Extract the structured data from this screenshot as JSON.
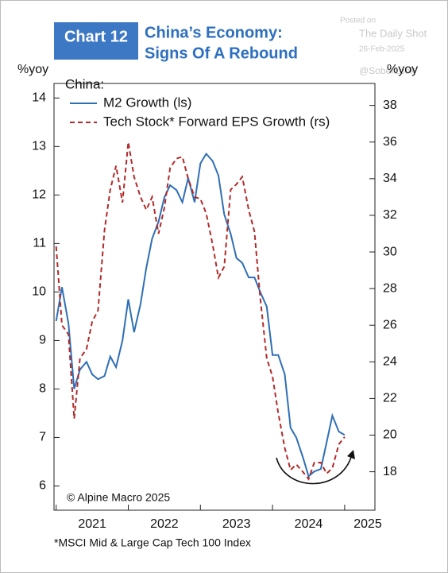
{
  "chart_data": {
    "type": "line",
    "chart_label": "Chart 12",
    "title": "China’s Economy:",
    "subtitle": "Signs Of A Rebound",
    "watermark": [
      "Posted on",
      "The Daily Shot",
      "26-Feb-2025",
      "@SoberLook"
    ],
    "ylabel": "%yoy",
    "y2label": "%yoy",
    "legend_title": "China:",
    "source": "© Alpine Macro 2025",
    "footnote": "*MSCI Mid & Large Cap Tech 100 Index",
    "x": [
      2021.0,
      2021.08,
      2021.17,
      2021.25,
      2021.33,
      2021.42,
      2021.5,
      2021.58,
      2021.67,
      2021.75,
      2021.83,
      2021.92,
      2022.0,
      2022.08,
      2022.17,
      2022.25,
      2022.33,
      2022.42,
      2022.5,
      2022.58,
      2022.67,
      2022.75,
      2022.83,
      2022.92,
      2023.0,
      2023.08,
      2023.17,
      2023.25,
      2023.33,
      2023.42,
      2023.5,
      2023.58,
      2023.67,
      2023.75,
      2023.83,
      2023.92,
      2024.0,
      2024.08,
      2024.17,
      2024.25,
      2024.33,
      2024.42,
      2024.5,
      2024.58,
      2024.67,
      2024.75,
      2024.83,
      2024.92,
      2025.0
    ],
    "series": [
      {
        "name": "M2 Growth (ls)",
        "color": "#2f6fb5",
        "dashed": false,
        "values": [
          9.4,
          10.1,
          9.35,
          8.0,
          8.4,
          8.56,
          8.3,
          8.2,
          8.27,
          8.67,
          8.45,
          9.0,
          9.85,
          9.17,
          9.75,
          10.5,
          11.1,
          11.45,
          11.95,
          12.2,
          12.1,
          11.85,
          12.35,
          11.85,
          12.65,
          12.85,
          12.7,
          12.4,
          11.6,
          11.2,
          10.7,
          10.6,
          10.3,
          10.3,
          10.0,
          9.7,
          8.7,
          8.7,
          8.3,
          7.2,
          7.0,
          6.6,
          6.2,
          6.3,
          6.35,
          6.9,
          7.45,
          7.12,
          7.05
        ]
      },
      {
        "name": "Tech Stock* Forward EPS Growth (rs)",
        "color": "#b22a2a",
        "dashed": true,
        "axis": "y2",
        "values": [
          30.3,
          26.0,
          25.5,
          20.9,
          24.2,
          24.7,
          26.2,
          26.8,
          31.2,
          33.4,
          34.7,
          32.7,
          36.0,
          34.1,
          33.0,
          32.3,
          33.0,
          31.0,
          32.4,
          34.6,
          35.1,
          35.2,
          34.0,
          33.0,
          32.9,
          32.1,
          30.4,
          28.6,
          29.2,
          33.4,
          33.7,
          34.1,
          32.3,
          31.1,
          27.5,
          24.2,
          23.2,
          21.2,
          19.3,
          18.1,
          18.4,
          18.0,
          17.6,
          18.5,
          18.5,
          17.9,
          18.2,
          19.5,
          19.9
        ]
      }
    ],
    "xlim": [
      2020.97,
      2025.42
    ],
    "xticks": [
      2021,
      2022,
      2023,
      2024,
      2025
    ],
    "ylim": [
      5.5,
      14.3
    ],
    "yticks": [
      6,
      7,
      8,
      9,
      10,
      11,
      12,
      13,
      14
    ],
    "y2lim": [
      15.9,
      39.2
    ],
    "y2ticks": [
      18,
      20,
      22,
      24,
      26,
      28,
      30,
      32,
      34,
      36,
      38
    ],
    "grid": false
  }
}
